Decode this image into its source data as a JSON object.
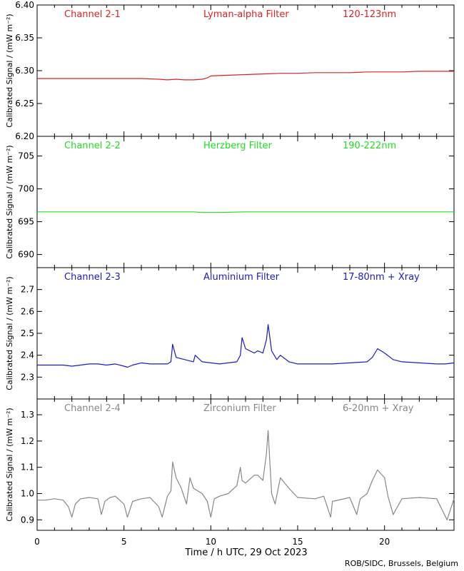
{
  "chart_data": [
    {
      "type": "line",
      "channel": "Channel 2-1",
      "filter": "Lyman-alpha Filter",
      "band": "120-123nm",
      "color": "#dd2222",
      "ylabel": "Calibrated Signal / (mW m⁻²)",
      "ylim": [
        6.2,
        6.4
      ],
      "yticks": [
        "6.20",
        "6.25",
        "6.30",
        "6.35",
        "6.40"
      ],
      "series": [
        {
          "x": [
            0,
            2,
            4,
            6,
            7,
            7.5,
            8,
            8.5,
            9,
            9.5,
            9.8,
            10,
            11,
            12,
            13,
            14,
            15,
            16,
            17,
            18,
            19,
            20,
            21,
            22,
            23,
            24
          ],
          "values": [
            6.288,
            6.288,
            6.288,
            6.288,
            6.287,
            6.286,
            6.287,
            6.286,
            6.286,
            6.287,
            6.289,
            6.292,
            6.293,
            6.294,
            6.295,
            6.296,
            6.296,
            6.297,
            6.297,
            6.297,
            6.298,
            6.298,
            6.298,
            6.299,
            6.299,
            6.299
          ]
        }
      ]
    },
    {
      "type": "line",
      "channel": "Channel 2-2",
      "filter": "Herzberg Filter",
      "band": "190-222nm",
      "color": "#22dd22",
      "ylabel": "Calibrated Signal / (mW m⁻²)",
      "ylim": [
        688,
        708
      ],
      "yticks": [
        "690",
        "695",
        "700",
        "705"
      ],
      "series": [
        {
          "x": [
            0,
            4,
            8,
            9,
            9.5,
            10,
            10.5,
            12,
            16,
            20,
            24
          ],
          "values": [
            696.5,
            696.5,
            696.5,
            696.5,
            696.4,
            696.4,
            696.4,
            696.5,
            696.5,
            696.5,
            696.5
          ]
        }
      ]
    },
    {
      "type": "line",
      "channel": "Channel 2-3",
      "filter": "Aluminium Filter",
      "band": "17-80nm + Xray",
      "color": "#1a1acc",
      "ylabel": "Calibrated Signal / (mW m⁻²)",
      "ylim": [
        2.2,
        2.8
      ],
      "yticks": [
        "2.3",
        "2.4",
        "2.5",
        "2.6",
        "2.7"
      ],
      "series": [
        {
          "x": [
            0,
            0.5,
            1,
            1.5,
            2,
            2.5,
            3,
            3.5,
            4,
            4.5,
            5,
            5.2,
            5.5,
            6,
            6.5,
            7,
            7.5,
            7.7,
            7.8,
            8,
            8.5,
            9,
            9.1,
            9.5,
            10,
            10.5,
            11,
            11.5,
            11.7,
            11.8,
            12,
            12.5,
            12.7,
            13,
            13.2,
            13.3,
            13.5,
            13.8,
            14,
            14.5,
            15,
            16,
            17,
            18,
            19,
            19.3,
            19.6,
            20,
            20.5,
            21,
            22,
            23,
            23.5,
            24
          ],
          "values": [
            2.355,
            2.355,
            2.355,
            2.355,
            2.35,
            2.355,
            2.36,
            2.36,
            2.355,
            2.36,
            2.35,
            2.345,
            2.355,
            2.365,
            2.36,
            2.36,
            2.36,
            2.37,
            2.45,
            2.39,
            2.38,
            2.37,
            2.4,
            2.37,
            2.365,
            2.36,
            2.365,
            2.37,
            2.4,
            2.48,
            2.43,
            2.41,
            2.42,
            2.41,
            2.47,
            2.54,
            2.42,
            2.38,
            2.4,
            2.37,
            2.36,
            2.36,
            2.36,
            2.365,
            2.37,
            2.39,
            2.43,
            2.41,
            2.38,
            2.37,
            2.365,
            2.36,
            2.36,
            2.365
          ]
        }
      ]
    },
    {
      "type": "line",
      "channel": "Channel 2-4",
      "filter": "Zirconium Filter",
      "band": "6-20nm + Xray",
      "color": "#888888",
      "ylabel": "Calibrated Signal / (mW m⁻²)",
      "ylim": [
        0.86,
        1.36
      ],
      "yticks": [
        "0.9",
        "1.0",
        "1.1",
        "1.2",
        "1.3"
      ],
      "series": [
        {
          "x": [
            0,
            0.5,
            1,
            1.5,
            1.8,
            2,
            2.2,
            2.5,
            3,
            3.5,
            3.7,
            3.9,
            4.2,
            4.5,
            5,
            5.2,
            5.5,
            6,
            6.5,
            7,
            7.2,
            7.5,
            7.7,
            7.8,
            8,
            8.3,
            8.6,
            8.8,
            9,
            9.5,
            9.8,
            10,
            10.2,
            10.5,
            11,
            11.5,
            11.7,
            11.8,
            12,
            12.5,
            12.7,
            13,
            13.2,
            13.3,
            13.5,
            13.7,
            14,
            14.5,
            15,
            16,
            16.5,
            16.7,
            16.9,
            17,
            18,
            18.4,
            18.6,
            19,
            19.3,
            19.6,
            20,
            20.2,
            20.5,
            21,
            22,
            23,
            23.3,
            23.6,
            24
          ],
          "values": [
            0.975,
            0.975,
            0.98,
            0.975,
            0.95,
            0.91,
            0.96,
            0.98,
            0.985,
            0.98,
            0.92,
            0.97,
            0.985,
            0.99,
            0.96,
            0.91,
            0.97,
            0.98,
            0.985,
            0.95,
            0.91,
            0.99,
            1.01,
            1.12,
            1.06,
            1.02,
            0.96,
            1.06,
            1.02,
            1.0,
            0.97,
            0.91,
            0.98,
            0.99,
            1.0,
            1.03,
            1.1,
            1.05,
            1.04,
            1.07,
            1.07,
            1.05,
            1.15,
            1.24,
            1.0,
            0.96,
            1.06,
            1.02,
            0.985,
            0.98,
            0.99,
            0.95,
            0.91,
            0.97,
            0.985,
            0.92,
            0.98,
            1.0,
            1.05,
            1.09,
            1.06,
            0.99,
            0.92,
            0.98,
            0.985,
            0.98,
            0.94,
            0.9,
            0.98
          ]
        }
      ]
    }
  ],
  "x_axis": {
    "label": "Time / h UTC, 29 Oct 2023",
    "xlim": [
      0,
      24
    ],
    "ticks": [
      "0",
      "5",
      "10",
      "15",
      "20"
    ],
    "tick_values": [
      0,
      5,
      10,
      15,
      20
    ]
  },
  "credit": "ROB/SIDC, Brussels, Belgium"
}
